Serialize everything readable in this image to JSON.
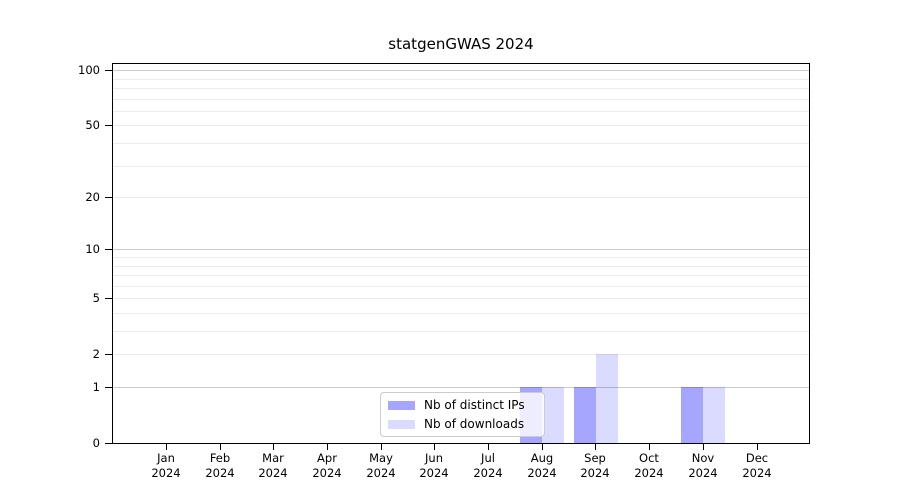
{
  "chart_data": {
    "type": "bar",
    "title": "statgenGWAS 2024",
    "categories": [
      "Jan",
      "Feb",
      "Mar",
      "Apr",
      "May",
      "Jun",
      "Jul",
      "Aug",
      "Sep",
      "Oct",
      "Nov",
      "Dec"
    ],
    "year_label": "2024",
    "series": [
      {
        "name": "Nb of distinct IPs",
        "color": "rgba(0,0,255,0.35)",
        "values": [
          0,
          0,
          0,
          0,
          0,
          0,
          0,
          1,
          1,
          0,
          1,
          0
        ]
      },
      {
        "name": "Nb of downloads",
        "color": "rgba(0,0,255,0.14)",
        "values": [
          0,
          0,
          0,
          0,
          0,
          0,
          0,
          1,
          2,
          0,
          1,
          0
        ]
      }
    ],
    "yscale": "log1p",
    "ylim": [
      0,
      108
    ],
    "y_tick_labels": [
      0,
      1,
      2,
      5,
      10,
      20,
      50,
      100
    ],
    "grid_major": [
      1,
      10,
      100
    ],
    "grid_minor": [
      2,
      3,
      4,
      5,
      6,
      7,
      8,
      9,
      20,
      30,
      40,
      50,
      60,
      70,
      80,
      90
    ],
    "grid": "on",
    "legend_position": "lower center",
    "background_color": "#ffffff",
    "text_color": "#000000"
  }
}
